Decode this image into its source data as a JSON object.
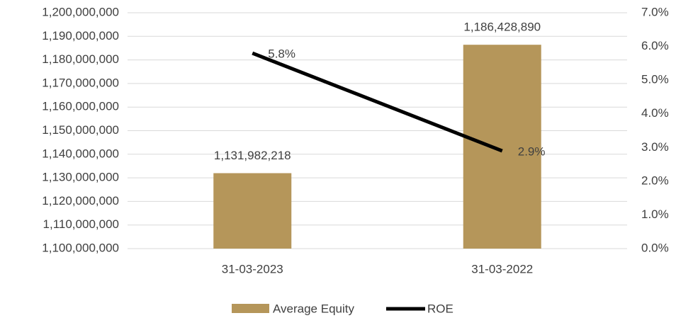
{
  "chart_data": {
    "type": "bar",
    "categories": [
      "31-03-2023",
      "31-03-2022"
    ],
    "series": [
      {
        "name": "Average Equity",
        "type": "bar",
        "color": "#b5965a",
        "axis": "y",
        "values": [
          1131982218,
          1186428890
        ],
        "value_labels": [
          "1,131,982,218",
          "1,186,428,890"
        ]
      },
      {
        "name": "ROE",
        "type": "line",
        "color": "#000000",
        "axis": "y2",
        "values": [
          5.8,
          2.9
        ],
        "value_labels": [
          "5.8%",
          "2.9%"
        ]
      }
    ],
    "ylim": [
      1100000000,
      1200000000
    ],
    "yticks": [
      {
        "value": 1100000000,
        "label": "1,100,000,000"
      },
      {
        "value": 1110000000,
        "label": "1,110,000,000"
      },
      {
        "value": 1120000000,
        "label": "1,120,000,000"
      },
      {
        "value": 1130000000,
        "label": "1,130,000,000"
      },
      {
        "value": 1140000000,
        "label": "1,140,000,000"
      },
      {
        "value": 1150000000,
        "label": "1,150,000,000"
      },
      {
        "value": 1160000000,
        "label": "1,160,000,000"
      },
      {
        "value": 1170000000,
        "label": "1,170,000,000"
      },
      {
        "value": 1180000000,
        "label": "1,180,000,000"
      },
      {
        "value": 1190000000,
        "label": "1,190,000,000"
      },
      {
        "value": 1200000000,
        "label": "1,200,000,000"
      }
    ],
    "y2lim": [
      0,
      7
    ],
    "y2ticks": [
      {
        "value": 0,
        "label": "0.0%"
      },
      {
        "value": 1,
        "label": "1.0%"
      },
      {
        "value": 2,
        "label": "2.0%"
      },
      {
        "value": 3,
        "label": "3.0%"
      },
      {
        "value": 4,
        "label": "4.0%"
      },
      {
        "value": 5,
        "label": "5.0%"
      },
      {
        "value": 6,
        "label": "6.0%"
      },
      {
        "value": 7,
        "label": "7.0%"
      }
    ],
    "grid": true,
    "legend": "bottom"
  }
}
